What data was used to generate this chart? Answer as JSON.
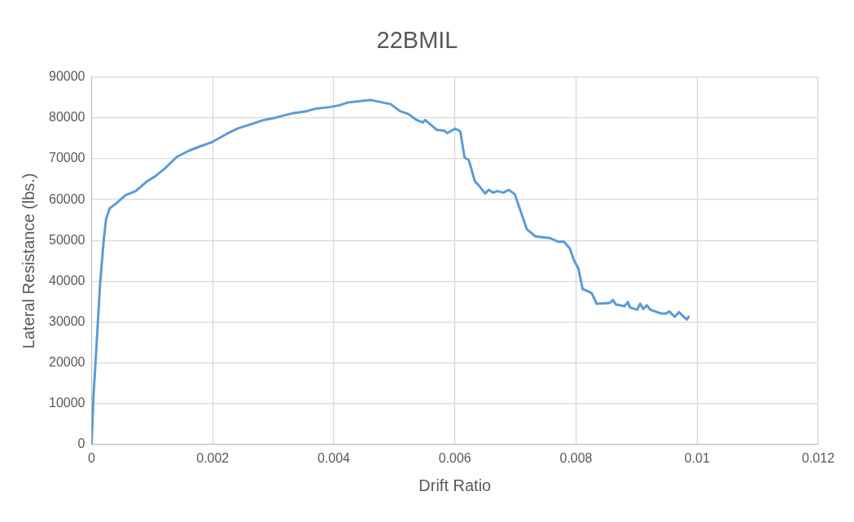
{
  "chart_data": {
    "type": "line",
    "title": "22BMIL",
    "xlabel": "Drift Ratio",
    "ylabel": "Lateral Resistance (lbs.)",
    "xlim": [
      0,
      0.012
    ],
    "xticks": [
      0,
      0.002,
      0.004,
      0.006,
      0.008,
      0.01,
      0.012
    ],
    "ylim": [
      0,
      90000
    ],
    "yticks": [
      0,
      10000,
      20000,
      30000,
      40000,
      50000,
      60000,
      70000,
      80000,
      90000
    ],
    "grid": true,
    "legend": false,
    "marker": "none",
    "line_style": "solid",
    "series": [
      {
        "color": "#5b9bd5",
        "x": [
          0,
          3e-05,
          9e-05,
          0.00014,
          0.0002,
          0.00024,
          0.0003,
          0.00032,
          0.00041,
          0.00056,
          0.00073,
          0.0009,
          0.00104,
          0.00123,
          0.00141,
          0.00161,
          0.0018,
          0.00199,
          0.00223,
          0.00241,
          0.00266,
          0.00284,
          0.00304,
          0.00333,
          0.00356,
          0.0037,
          0.00394,
          0.00409,
          0.00423,
          0.00461,
          0.00494,
          0.00509,
          0.00523,
          0.00537,
          0.00547,
          0.00551,
          0.0057,
          0.00583,
          0.00587,
          0.00601,
          0.00609,
          0.00616,
          0.00623,
          0.00633,
          0.00641,
          0.0065,
          0.00656,
          0.00663,
          0.0067,
          0.0068,
          0.00689,
          0.00699,
          0.00709,
          0.00719,
          0.00733,
          0.00744,
          0.00756,
          0.0077,
          0.0078,
          0.0079,
          0.00797,
          0.00804,
          0.00811,
          0.0082,
          0.00826,
          0.00834,
          0.00856,
          0.00861,
          0.00866,
          0.0088,
          0.00886,
          0.00889,
          0.00901,
          0.00906,
          0.00911,
          0.00917,
          0.00923,
          0.0094,
          0.00949,
          0.00954,
          0.00963,
          0.0097,
          0.00983,
          0.00986
        ],
        "values": [
          0,
          11400,
          26400,
          39200,
          50000,
          55300,
          57900,
          58100,
          59100,
          61100,
          62100,
          64300,
          65600,
          67900,
          70500,
          72000,
          73100,
          74100,
          76100,
          77400,
          78600,
          79500,
          80100,
          81200,
          81700,
          82300,
          82700,
          83100,
          83800,
          84400,
          83400,
          81700,
          81000,
          79500,
          78900,
          79500,
          77100,
          76900,
          76300,
          77400,
          76700,
          70300,
          69700,
          64500,
          63200,
          61500,
          62400,
          61700,
          62100,
          61700,
          62400,
          61300,
          57000,
          52700,
          51000,
          50800,
          50600,
          49700,
          49700,
          48000,
          45000,
          43100,
          38100,
          37500,
          37100,
          34500,
          34700,
          35400,
          34300,
          33900,
          34900,
          33600,
          33000,
          34500,
          33200,
          34100,
          33000,
          32100,
          32100,
          32600,
          31300,
          32400,
          30600,
          31300
        ]
      }
    ]
  }
}
